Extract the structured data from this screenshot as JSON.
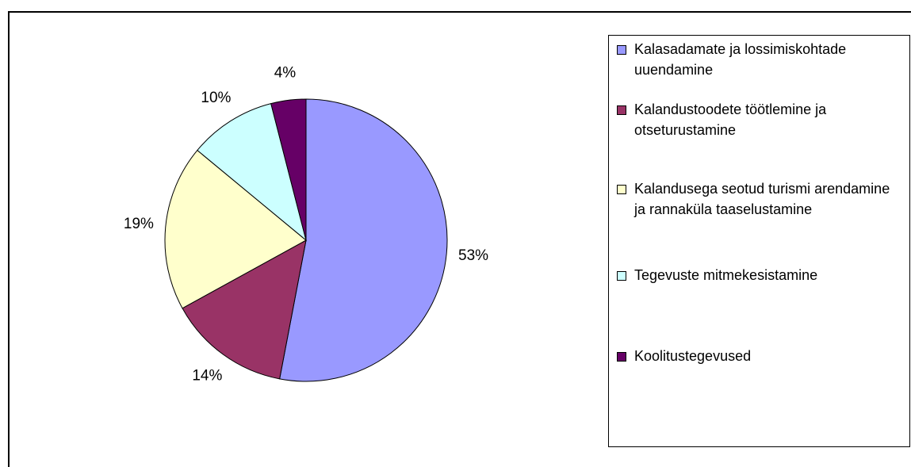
{
  "chart_data": {
    "type": "pie",
    "categories": [
      "Kalasadamate ja lossimiskohtade uuendamine",
      "Kalandustoodete töötlemine ja otseturustamine",
      "Kalandusega seotud turismi arendamine ja rannaküla taaselustamine",
      "Tegevuste mitmekesistamine",
      "Koolitustegevused"
    ],
    "values": [
      53,
      14,
      19,
      10,
      4
    ],
    "value_labels": [
      "53%",
      "14%",
      "19%",
      "10%",
      "4%"
    ],
    "colors": [
      "#9999ff",
      "#993366",
      "#ffffcc",
      "#ccffff",
      "#660066"
    ]
  }
}
